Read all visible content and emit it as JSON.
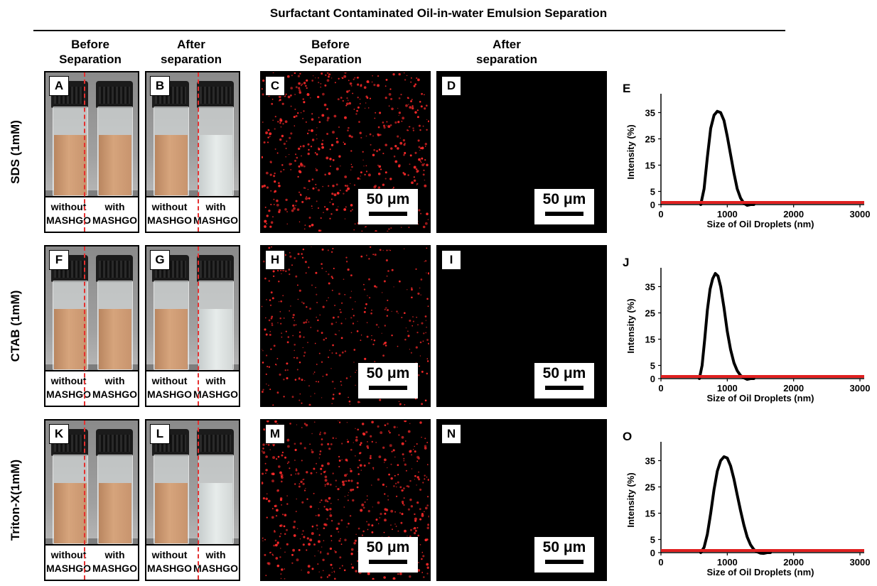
{
  "figure": {
    "title": "Surfactant Contaminated Oil-in-water Emulsion Separation",
    "column_headers": [
      "Before\nSeparation",
      "After\nseparation",
      "Before\nSeparation",
      "After\nseparation"
    ],
    "rows": [
      {
        "label": "SDS (1mM)",
        "photo_before": "A",
        "photo_after": "B",
        "micro_before": "C",
        "micro_after": "D",
        "chart": "E"
      },
      {
        "label": "CTAB (1mM)",
        "photo_before": "F",
        "photo_after": "G",
        "micro_before": "H",
        "micro_after": "I",
        "chart": "J"
      },
      {
        "label": "Triton-X(1mM)",
        "photo_before": "K",
        "photo_after": "L",
        "micro_before": "M",
        "micro_after": "N",
        "chart": "O"
      }
    ],
    "vial_caption_left": "without\nMASHGO",
    "vial_caption_right": "with\nMASHGO",
    "scale_bar": "50 μm",
    "colors": {
      "dashed_divider": "#e53030",
      "droplets": "#ff2a2a",
      "baseline": "#e02020",
      "curve": "#000000"
    }
  },
  "chart_data": [
    {
      "type": "line",
      "panel": "E",
      "xlabel": "Size of Oil Droplets  (nm)",
      "ylabel": "Intensity (%)",
      "xlim": [
        0,
        3000
      ],
      "ylim": [
        0,
        40
      ],
      "xticks": [
        0,
        1000,
        2000,
        3000
      ],
      "yticks": [
        0,
        5,
        15,
        25,
        35
      ],
      "series": [
        {
          "x": [
            600,
            650,
            700,
            750,
            800,
            850,
            900,
            950,
            1000,
            1050,
            1100,
            1150,
            1200,
            1250,
            1300,
            1350,
            1400
          ],
          "y": [
            0,
            6,
            18,
            29,
            34,
            35.5,
            35,
            32,
            26,
            19,
            12,
            6,
            2.5,
            0.5,
            -0.3,
            0,
            0
          ]
        }
      ],
      "baseline": 0.8
    },
    {
      "type": "line",
      "panel": "J",
      "xlabel": "Size of Oil Droplets  (nm)",
      "ylabel": "Intensity (%)",
      "xlim": [
        0,
        3000
      ],
      "ylim": [
        0,
        40
      ],
      "xticks": [
        0,
        1000,
        2000,
        3000
      ],
      "yticks": [
        0,
        5,
        15,
        25,
        35
      ],
      "series": [
        {
          "x": [
            580,
            620,
            660,
            700,
            740,
            780,
            820,
            860,
            900,
            950,
            1000,
            1050,
            1100,
            1150,
            1200,
            1250,
            1300,
            1350,
            1400
          ],
          "y": [
            0,
            5,
            15,
            26,
            34,
            38,
            40,
            39,
            35,
            27,
            18,
            11,
            6,
            3,
            1.2,
            0.3,
            -0.3,
            0,
            0
          ]
        }
      ],
      "baseline": 0.8
    },
    {
      "type": "line",
      "panel": "O",
      "xlabel": "Size of Oil Droplets  (nm)",
      "ylabel": "Intensity (%)",
      "xlim": [
        0,
        3000
      ],
      "ylim": [
        0,
        40
      ],
      "xticks": [
        0,
        1000,
        2000,
        3000
      ],
      "yticks": [
        0,
        5,
        15,
        25,
        35
      ],
      "series": [
        {
          "x": [
            600,
            650,
            700,
            750,
            800,
            850,
            900,
            950,
            1000,
            1050,
            1100,
            1150,
            1200,
            1250,
            1300,
            1350,
            1400,
            1450,
            1500,
            1550,
            1600,
            1650
          ],
          "y": [
            0,
            2,
            7,
            15,
            24,
            31,
            35,
            36.5,
            36,
            33,
            28,
            22,
            16,
            10.5,
            6,
            3,
            1.2,
            0.3,
            -0.2,
            -0.3,
            0,
            0
          ]
        }
      ],
      "baseline": 0.8
    }
  ]
}
